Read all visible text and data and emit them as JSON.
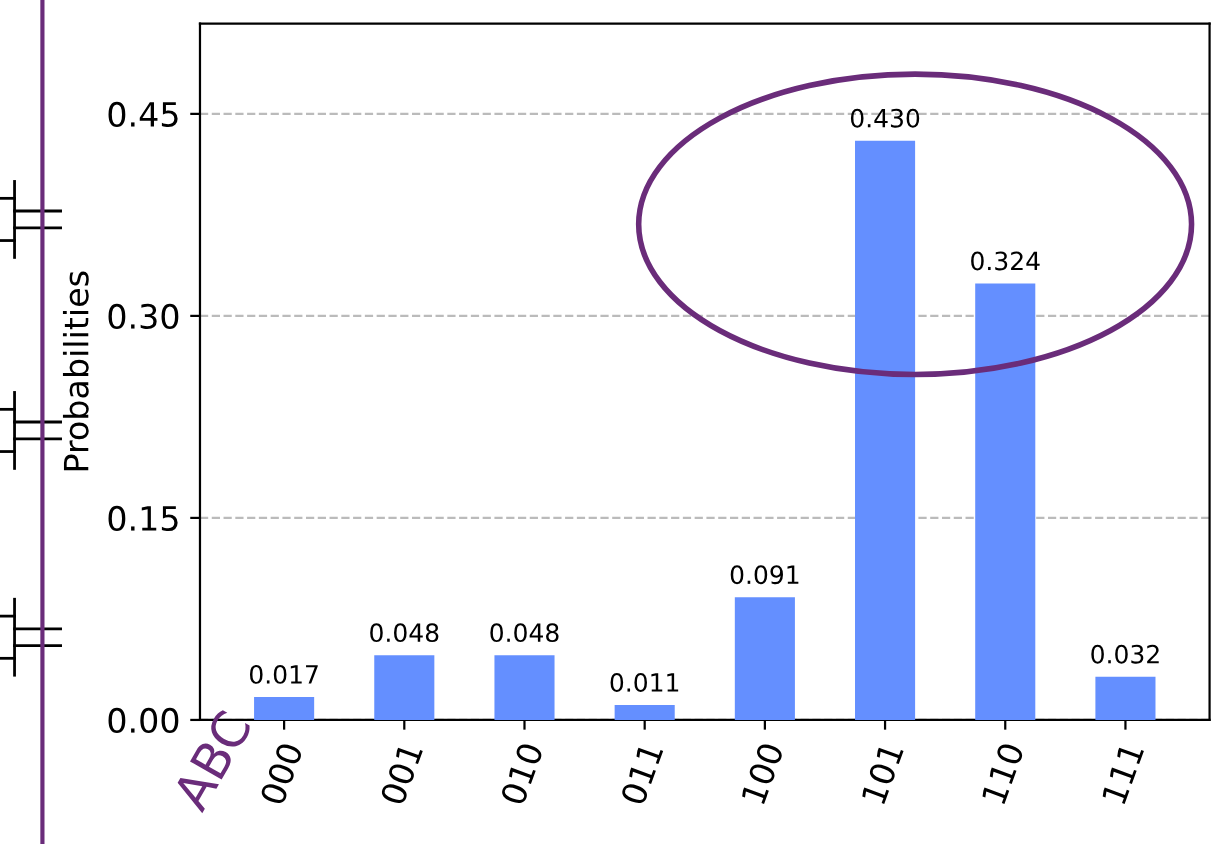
{
  "chart_data": {
    "type": "bar",
    "ylabel": "Probabilities",
    "categories": [
      "000",
      "001",
      "010",
      "011",
      "100",
      "101",
      "110",
      "111"
    ],
    "values": [
      0.017,
      0.048,
      0.048,
      0.011,
      0.091,
      0.43,
      0.324,
      0.032
    ],
    "color": "#648fff",
    "value_labels": [
      "0.017",
      "0.048",
      "0.048",
      "0.011",
      "0.091",
      "0.430",
      "0.324",
      "0.032"
    ],
    "ylim": [
      0,
      0.517
    ],
    "yticks": [
      {
        "value": 0,
        "label": "0.00"
      },
      {
        "value": 0.15,
        "label": "0.15"
      },
      {
        "value": 0.3,
        "label": "0.30"
      },
      {
        "value": 0.45,
        "label": "0.45"
      }
    ],
    "grid": "y",
    "annotations": [
      "ABC"
    ]
  }
}
